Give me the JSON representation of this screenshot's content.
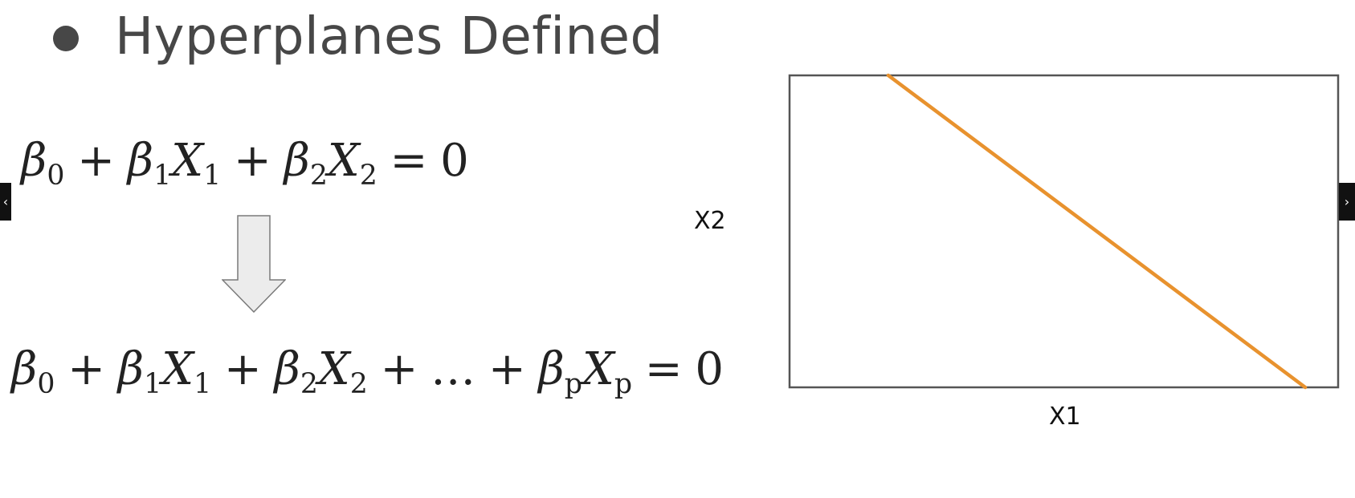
{
  "slide": {
    "title": "Hyperplanes Defined"
  },
  "equations": {
    "two_d": {
      "b0": "β",
      "b0_sub": "0",
      "plus1": "+",
      "b1": "β",
      "b1_sub": "1",
      "x1": "X",
      "x1_sub": "1",
      "plus2": "+",
      "b2": "β",
      "b2_sub": "2",
      "x2": "X",
      "x2_sub": "2",
      "eq": "=",
      "rhs": "0"
    },
    "p_d": {
      "b0": "β",
      "b0_sub": "0",
      "plus1": "+",
      "b1": "β",
      "b1_sub": "1",
      "x1": "X",
      "x1_sub": "1",
      "plus2": "+",
      "b2": "β",
      "b2_sub": "2",
      "x2": "X",
      "x2_sub": "2",
      "plus3": "+",
      "dots": "…",
      "plus4": "+",
      "bp": "β",
      "bp_sub": "p",
      "xp": "X",
      "xp_sub": "p",
      "eq": "=",
      "rhs": "0"
    }
  },
  "arrow_icon": "down-arrow-icon",
  "nav": {
    "prev": "‹",
    "next": "›"
  },
  "chart_data": {
    "type": "line",
    "xlabel": "X1",
    "ylabel": "X2",
    "xlim": [
      0,
      1
    ],
    "ylim": [
      0,
      1
    ],
    "grid": false,
    "series": [
      {
        "x": [
          0.18,
          0.94
        ],
        "y": [
          1.0,
          0.0
        ],
        "color": "#e8922e"
      }
    ]
  },
  "colors": {
    "title": "#474747",
    "frame": "#555555",
    "line": "#e8922e"
  }
}
